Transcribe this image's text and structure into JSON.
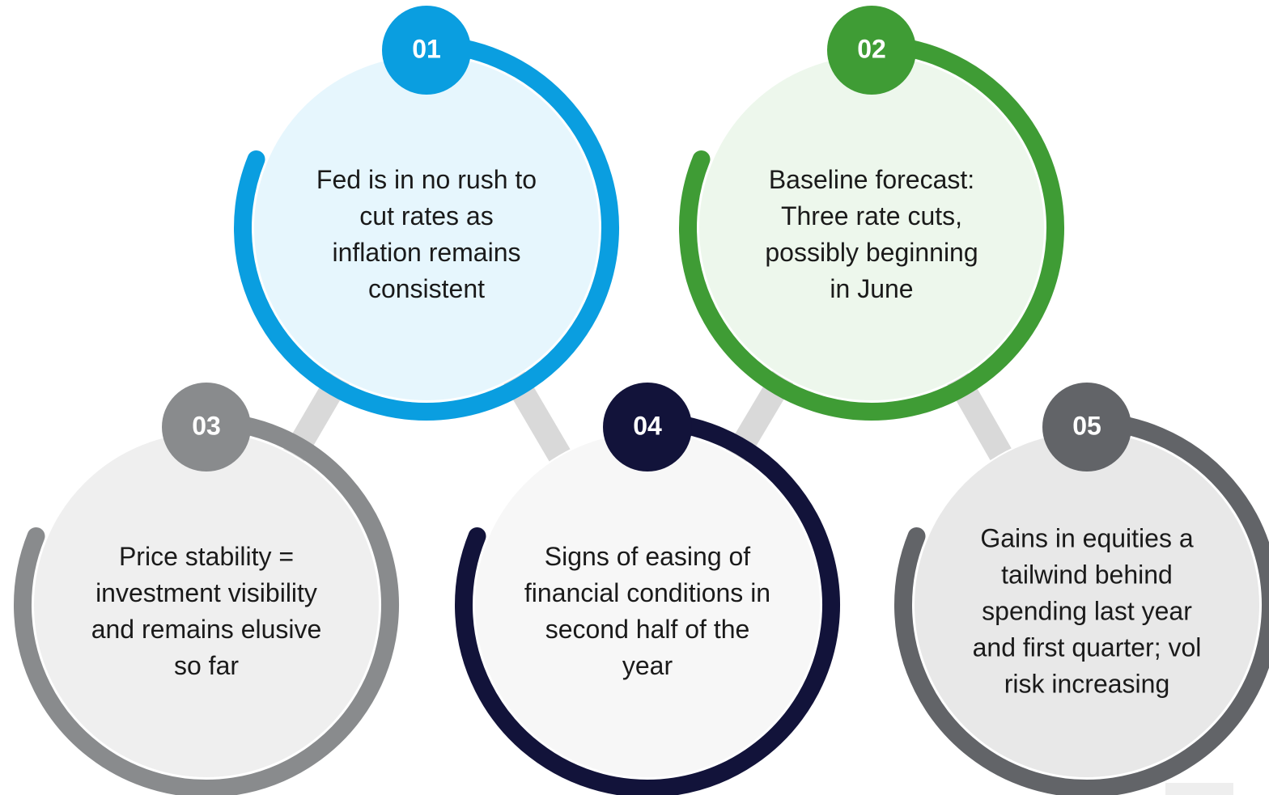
{
  "nodes": [
    {
      "number": "01",
      "lines": [
        "Fed is in no rush to",
        "cut rates as",
        "inflation remains",
        "consistent"
      ]
    },
    {
      "number": "02",
      "lines": [
        "Baseline forecast:",
        "Three rate cuts,",
        "possibly beginning",
        "in June"
      ]
    },
    {
      "number": "03",
      "lines": [
        "Price stability =",
        "investment visibility",
        "and remains elusive",
        "so far"
      ]
    },
    {
      "number": "04",
      "lines": [
        "Signs of easing of",
        "financial conditions in",
        "second half of the",
        "year"
      ]
    },
    {
      "number": "05",
      "lines": [
        "Gains in equities a",
        "tailwind behind",
        "spending last year",
        "and first quarter; vol",
        "risk increasing"
      ]
    }
  ]
}
